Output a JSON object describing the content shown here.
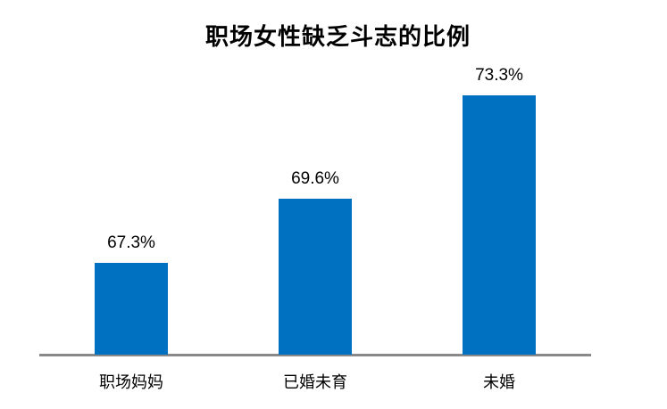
{
  "chart_data": {
    "type": "bar",
    "title": "职场女性缺乏斗志的比例",
    "categories": [
      "职场妈妈",
      "已婚未育",
      "未婚"
    ],
    "values": [
      67.3,
      69.6,
      73.3
    ],
    "value_labels": [
      "67.3%",
      "69.6%",
      "73.3%"
    ],
    "ylim": [
      64,
      74
    ],
    "xlabel": "",
    "ylabel": "",
    "grid": false,
    "legend": false,
    "y_axis_visible": false,
    "bar_color": "#0070C0",
    "axis_line_color": "#898989",
    "text_color": "#000000",
    "background_color": "#ffffff"
  }
}
